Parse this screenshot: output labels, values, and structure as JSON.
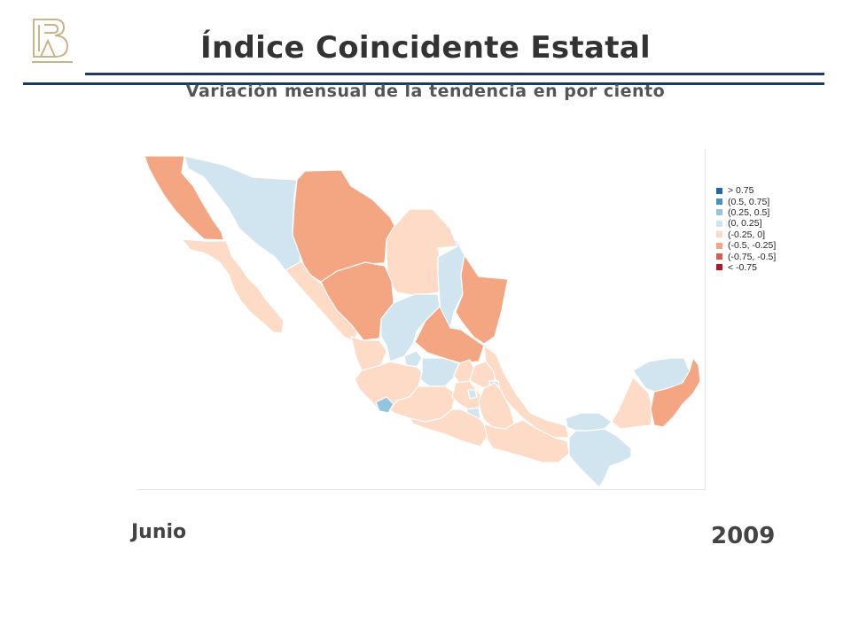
{
  "header": {
    "title": "Índice Coincidente Estatal",
    "subtitle": "Variación mensual de la tendencia en por ciento"
  },
  "map": {
    "legend": [
      {
        "label": "> 0.75",
        "color": "#2166ac"
      },
      {
        "label": "(0.5, 0.75]",
        "color": "#4393c3"
      },
      {
        "label": "(0.25, 0.5]",
        "color": "#92c5de"
      },
      {
        "label": "(0, 0.25]",
        "color": "#d1e5f0"
      },
      {
        "label": "(-0.25, 0]",
        "color": "#fddbc7"
      },
      {
        "label": "(-0.5, -0.25]",
        "color": "#f4a582"
      },
      {
        "label": "(-0.75, -0.5]",
        "color": "#d6604d"
      },
      {
        "label": "< -0.75",
        "color": "#b2182b"
      }
    ],
    "states": [
      {
        "name": "Baja California",
        "class": "(-0.5, -0.25]"
      },
      {
        "name": "Baja California Sur",
        "class": "(-0.25, 0]"
      },
      {
        "name": "Sonora",
        "class": "(0, 0.25]"
      },
      {
        "name": "Chihuahua",
        "class": "(-0.5, -0.25]"
      },
      {
        "name": "Coahuila",
        "class": "(-0.25, 0]"
      },
      {
        "name": "Nuevo León",
        "class": "(0, 0.25]"
      },
      {
        "name": "Tamaulipas",
        "class": "(-0.5, -0.25]"
      },
      {
        "name": "Sinaloa",
        "class": "(-0.25, 0]"
      },
      {
        "name": "Durango",
        "class": "(-0.5, -0.25]"
      },
      {
        "name": "Zacatecas",
        "class": "(0, 0.25]"
      },
      {
        "name": "San Luis Potosí",
        "class": "(-0.5, -0.25]"
      },
      {
        "name": "Nayarit",
        "class": "(-0.25, 0]"
      },
      {
        "name": "Aguascalientes",
        "class": "(0, 0.25]"
      },
      {
        "name": "Jalisco",
        "class": "(-0.25, 0]"
      },
      {
        "name": "Guanajuato",
        "class": "(0, 0.25]"
      },
      {
        "name": "Querétaro",
        "class": "(-0.25, 0]"
      },
      {
        "name": "Hidalgo",
        "class": "(-0.25, 0]"
      },
      {
        "name": "Colima",
        "class": "(0.25, 0.5]"
      },
      {
        "name": "Michoacán",
        "class": "(-0.25, 0]"
      },
      {
        "name": "Estado de México",
        "class": "(-0.25, 0]"
      },
      {
        "name": "Distrito Federal",
        "class": "(0, 0.25]"
      },
      {
        "name": "Tlaxcala",
        "class": "(0, 0.25]"
      },
      {
        "name": "Morelos",
        "class": "(0, 0.25]"
      },
      {
        "name": "Puebla",
        "class": "(-0.25, 0]"
      },
      {
        "name": "Veracruz",
        "class": "(-0.25, 0]"
      },
      {
        "name": "Guerrero",
        "class": "(-0.25, 0]"
      },
      {
        "name": "Oaxaca",
        "class": "(-0.25, 0]"
      },
      {
        "name": "Tabasco",
        "class": "(0, 0.25]"
      },
      {
        "name": "Chiapas",
        "class": "(0, 0.25]"
      },
      {
        "name": "Campeche",
        "class": "(-0.25, 0]"
      },
      {
        "name": "Yucatán",
        "class": "(0, 0.25]"
      },
      {
        "name": "Quintana Roo",
        "class": "(-0.5, -0.25]"
      }
    ]
  },
  "footer": {
    "month": "Junio",
    "year": "2009"
  }
}
